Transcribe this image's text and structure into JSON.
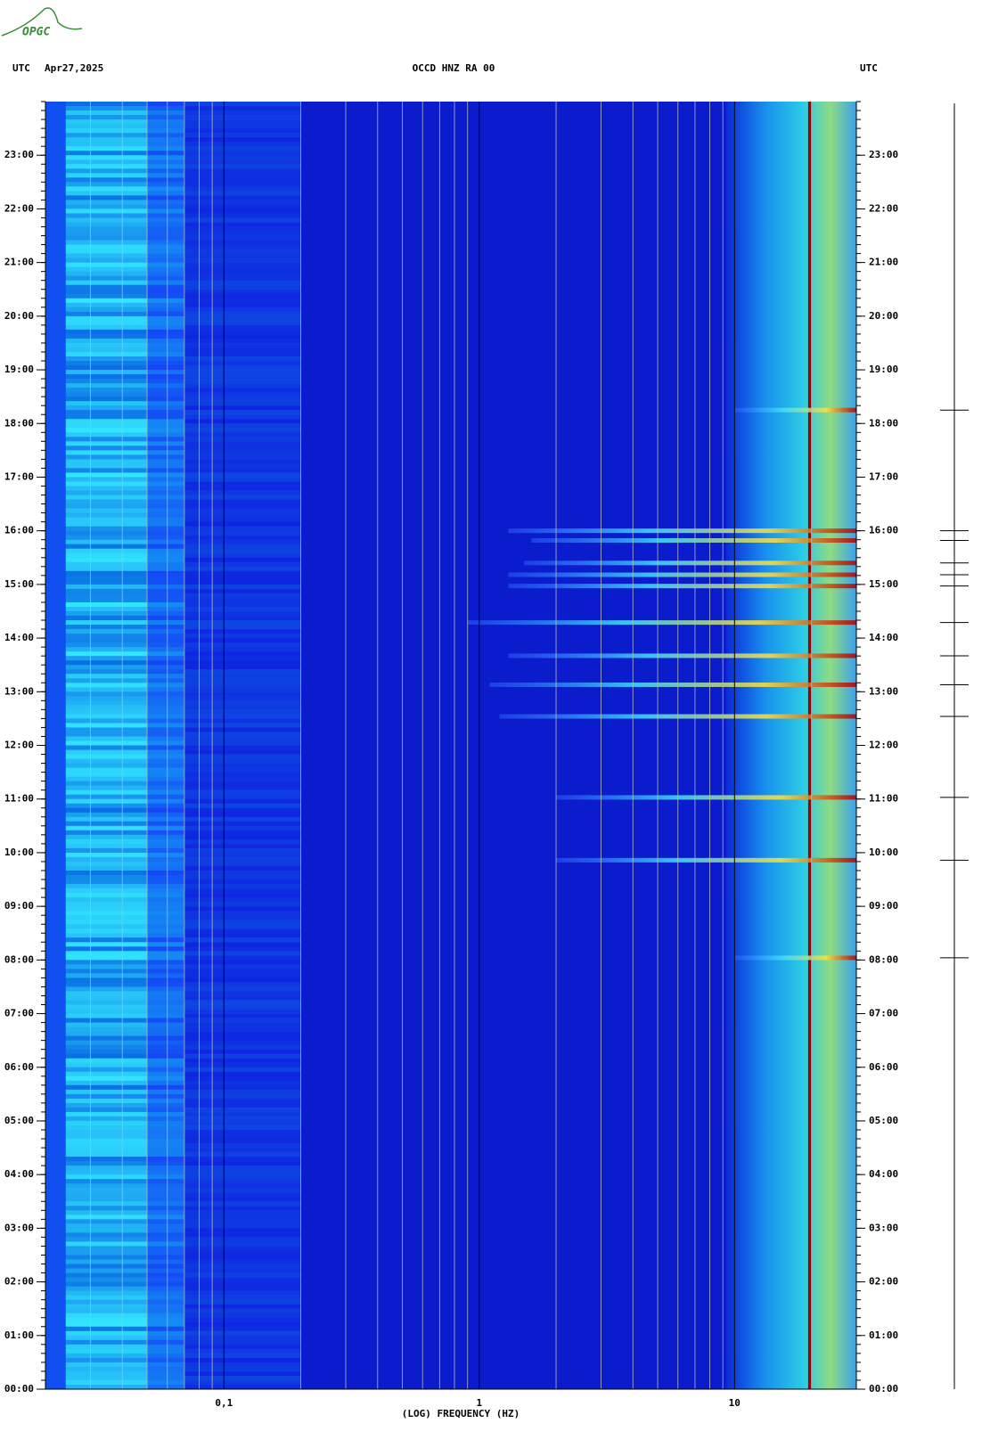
{
  "logo": "OPGC",
  "chart_data": {
    "type": "spectrogram",
    "title": "OCCD HNZ RA 00",
    "date": "Apr27,2025",
    "timezone_left": "UTC",
    "timezone_right": "UTC",
    "xlabel": "(LOG) FREQUENCY (HZ)",
    "xscale": "log",
    "xlim": [
      0.02,
      30
    ],
    "xticks": [
      {
        "value": 0.1,
        "label": "0,1"
      },
      1,
      10
    ],
    "ylim": [
      0,
      24
    ],
    "yticks": [
      {
        "value": 0,
        "label": "00:00"
      },
      {
        "value": 1,
        "label": "01:00"
      },
      {
        "value": 2,
        "label": "02:00"
      },
      {
        "value": 3,
        "label": "03:00"
      },
      {
        "value": 4,
        "label": "04:00"
      },
      {
        "value": 5,
        "label": "05:00"
      },
      {
        "value": 6,
        "label": "06:00"
      },
      {
        "value": 7,
        "label": "07:00"
      },
      {
        "value": 8,
        "label": "08:00"
      },
      {
        "value": 9,
        "label": "09:00"
      },
      {
        "value": 10,
        "label": "10:00"
      },
      {
        "value": 11,
        "label": "11:00"
      },
      {
        "value": 12,
        "label": "12:00"
      },
      {
        "value": 13,
        "label": "13:00"
      },
      {
        "value": 14,
        "label": "14:00"
      },
      {
        "value": 15,
        "label": "15:00"
      },
      {
        "value": 16,
        "label": "16:00"
      },
      {
        "value": 17,
        "label": "17:00"
      },
      {
        "value": 18,
        "label": "18:00"
      },
      {
        "value": 19,
        "label": "19:00"
      },
      {
        "value": 20,
        "label": "20:00"
      },
      {
        "value": 21,
        "label": "21:00"
      },
      {
        "value": 22,
        "label": "22:00"
      },
      {
        "value": 23,
        "label": "23:00"
      }
    ],
    "bands": [
      {
        "y": 16.0,
        "x": 1.3
      },
      {
        "y": 15.82,
        "x": 1.6
      },
      {
        "y": 15.4,
        "x": 1.5
      },
      {
        "y": 15.18,
        "x": 1.3
      },
      {
        "y": 14.97,
        "x": 1.3
      },
      {
        "y": 14.29,
        "x": 0.9
      },
      {
        "y": 13.67,
        "x": 1.3
      },
      {
        "y": 13.13,
        "x": 1.1
      },
      {
        "y": 12.54,
        "x": 1.2
      },
      {
        "y": 11.03,
        "x": 2.0
      },
      {
        "y": 9.86,
        "x": 2.0
      },
      {
        "y": 8.04,
        "x": 10
      },
      {
        "y": 18.25,
        "x": 10
      }
    ]
  }
}
